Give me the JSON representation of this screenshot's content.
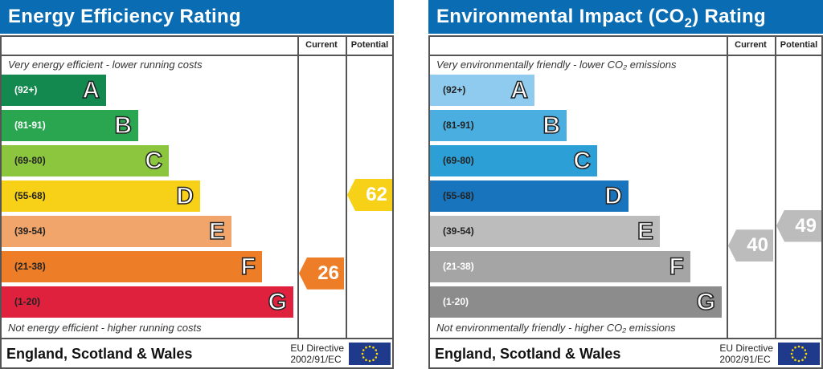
{
  "panels": [
    {
      "id": "energy",
      "title": "Energy Efficiency Rating",
      "title_sub": "",
      "title_suffix": "",
      "col_current": "Current",
      "col_potential": "Potential",
      "top_note": "Very energy efficient - lower running costs",
      "bottom_note": "Not energy efficient - higher running costs",
      "region": "England, Scotland & Wales",
      "directive_line1": "EU Directive",
      "directive_line2": "2002/91/EC",
      "bands": [
        {
          "letter": "A",
          "range": "(92+)",
          "min": 92,
          "max": 100,
          "color": "#13884f",
          "text": "#fff"
        },
        {
          "letter": "B",
          "range": "(81-91)",
          "min": 81,
          "max": 91,
          "color": "#2aa651",
          "text": "#fff"
        },
        {
          "letter": "C",
          "range": "(69-80)",
          "min": 69,
          "max": 80,
          "color": "#8cc63f",
          "text": "#222"
        },
        {
          "letter": "D",
          "range": "(55-68)",
          "min": 55,
          "max": 68,
          "color": "#f7d117",
          "text": "#222"
        },
        {
          "letter": "E",
          "range": "(39-54)",
          "min": 39,
          "max": 54,
          "color": "#f2a56a",
          "text": "#222"
        },
        {
          "letter": "F",
          "range": "(21-38)",
          "min": 21,
          "max": 38,
          "color": "#ee7d27",
          "text": "#222"
        },
        {
          "letter": "G",
          "range": "(1-20)",
          "min": 1,
          "max": 20,
          "color": "#e0213d",
          "text": "#222"
        }
      ],
      "current": 26,
      "potential": 62
    },
    {
      "id": "environmental",
      "title": "Environmental Impact (CO",
      "title_sub": "2",
      "title_suffix": ") Rating",
      "col_current": "Current",
      "col_potential": "Potential",
      "top_note": "Very environmentally friendly - lower CO₂ emissions",
      "bottom_note": "Not environmentally friendly - higher CO₂ emissions",
      "region": "England, Scotland & Wales",
      "directive_line1": "EU Directive",
      "directive_line2": "2002/91/EC",
      "bands": [
        {
          "letter": "A",
          "range": "(92+)",
          "min": 92,
          "max": 100,
          "color": "#8fcbee",
          "text": "#222"
        },
        {
          "letter": "B",
          "range": "(81-91)",
          "min": 81,
          "max": 91,
          "color": "#4aaee0",
          "text": "#222"
        },
        {
          "letter": "C",
          "range": "(69-80)",
          "min": 69,
          "max": 80,
          "color": "#2c9fd6",
          "text": "#222"
        },
        {
          "letter": "D",
          "range": "(55-68)",
          "min": 55,
          "max": 68,
          "color": "#1875bd",
          "text": "#222"
        },
        {
          "letter": "E",
          "range": "(39-54)",
          "min": 39,
          "max": 54,
          "color": "#bcbcbc",
          "text": "#222"
        },
        {
          "letter": "F",
          "range": "(21-38)",
          "min": 21,
          "max": 38,
          "color": "#a5a5a5",
          "text": "#fff"
        },
        {
          "letter": "G",
          "range": "(1-20)",
          "min": 1,
          "max": 20,
          "color": "#8c8c8c",
          "text": "#fff"
        }
      ],
      "current": 40,
      "potential": 49
    }
  ],
  "chart_data": [
    {
      "type": "bar",
      "title": "Energy Efficiency Rating",
      "categories": [
        "A",
        "B",
        "C",
        "D",
        "E",
        "F",
        "G"
      ],
      "current": 26,
      "potential": 62
    },
    {
      "type": "bar",
      "title": "Environmental Impact (CO2) Rating",
      "categories": [
        "A",
        "B",
        "C",
        "D",
        "E",
        "F",
        "G"
      ],
      "current": 40,
      "potential": 49
    }
  ]
}
